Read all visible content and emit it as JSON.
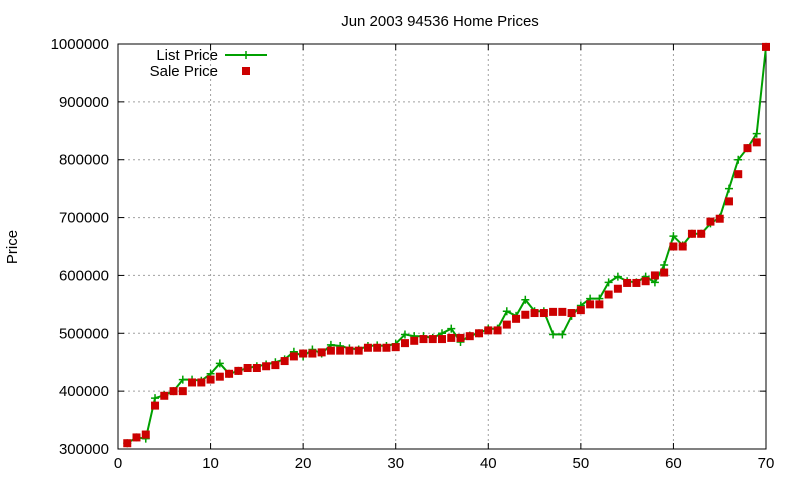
{
  "chart_data": {
    "type": "line",
    "title": "Jun 2003 94536 Home Prices",
    "xlabel": "",
    "ylabel": "Price",
    "xlim": [
      0,
      70
    ],
    "ylim": [
      300000,
      1000000
    ],
    "xticks": [
      0,
      10,
      20,
      30,
      40,
      50,
      60,
      70
    ],
    "yticks": [
      300000,
      400000,
      500000,
      600000,
      700000,
      800000,
      900000,
      1000000
    ],
    "grid": true,
    "legend_position": "top-left",
    "series": [
      {
        "name": "List Price",
        "style": "line+plus",
        "color": "#00a000",
        "x": [
          1,
          2,
          3,
          4,
          5,
          6,
          7,
          8,
          9,
          10,
          11,
          12,
          13,
          14,
          15,
          16,
          17,
          18,
          19,
          20,
          21,
          22,
          23,
          24,
          25,
          26,
          27,
          28,
          29,
          30,
          31,
          32,
          33,
          34,
          35,
          36,
          37,
          38,
          39,
          40,
          41,
          42,
          43,
          44,
          45,
          46,
          47,
          48,
          49,
          50,
          51,
          52,
          53,
          54,
          55,
          56,
          57,
          58,
          59,
          60,
          61,
          62,
          63,
          64,
          65,
          66,
          67,
          68,
          69,
          70
        ],
        "y": [
          310000,
          320000,
          318000,
          388000,
          393000,
          400000,
          420000,
          420000,
          418000,
          430000,
          448000,
          430000,
          435000,
          440000,
          443000,
          446000,
          450000,
          455000,
          468000,
          460000,
          472000,
          465000,
          480000,
          478000,
          474000,
          472000,
          478000,
          479000,
          478000,
          482000,
          498000,
          495000,
          495000,
          492000,
          500000,
          508000,
          485000,
          496000,
          500000,
          508000,
          508000,
          538000,
          530000,
          558000,
          538000,
          538000,
          498000,
          498000,
          530000,
          548000,
          560000,
          560000,
          588000,
          598000,
          590000,
          588000,
          598000,
          588000,
          618000,
          668000,
          652000,
          672000,
          672000,
          690000,
          700000,
          750000,
          800000,
          820000,
          845000,
          995000
        ]
      },
      {
        "name": "Sale Price",
        "style": "square-markers",
        "color": "#cc0000",
        "x": [
          1,
          2,
          3,
          4,
          5,
          6,
          7,
          8,
          9,
          10,
          11,
          12,
          13,
          14,
          15,
          16,
          17,
          18,
          19,
          20,
          21,
          22,
          23,
          24,
          25,
          26,
          27,
          28,
          29,
          30,
          31,
          32,
          33,
          34,
          35,
          36,
          37,
          38,
          39,
          40,
          41,
          42,
          43,
          44,
          45,
          46,
          47,
          48,
          49,
          50,
          51,
          52,
          53,
          54,
          55,
          56,
          57,
          58,
          59,
          60,
          61,
          62,
          63,
          64,
          65,
          66,
          67,
          68,
          69,
          70
        ],
        "y": [
          310000,
          320000,
          325000,
          375000,
          392000,
          400000,
          400000,
          415000,
          415000,
          420000,
          425000,
          430000,
          435000,
          440000,
          440000,
          443000,
          445000,
          452000,
          460000,
          465000,
          465000,
          467000,
          470000,
          470000,
          470000,
          470000,
          475000,
          475000,
          475000,
          476000,
          483000,
          487000,
          490000,
          490000,
          490000,
          492000,
          492000,
          495000,
          500000,
          505000,
          505000,
          515000,
          525000,
          532000,
          535000,
          535000,
          537000,
          537000,
          535000,
          540000,
          550000,
          550000,
          567000,
          577000,
          587000,
          587000,
          590000,
          600000,
          605000,
          650000,
          650000,
          672000,
          672000,
          693000,
          698000,
          728000,
          775000,
          820000,
          830000,
          995000
        ]
      }
    ]
  }
}
